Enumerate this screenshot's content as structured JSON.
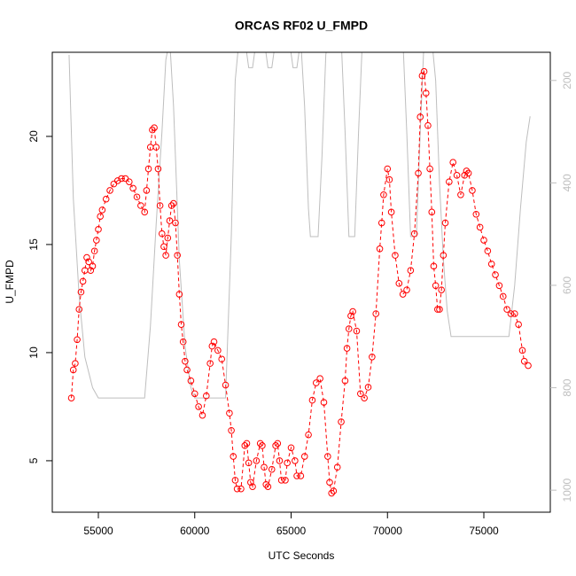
{
  "chart_data": {
    "type": "line",
    "title": "ORCAS RF02 U_FMPD",
    "x_label": "UTC Seconds",
    "y_label": "U_FMPD",
    "xlim": [
      52609,
      78448
    ],
    "ylim": [
      2.62,
      23.89
    ],
    "y2lim": [
      1043,
      145
    ],
    "xticks": [
      55000,
      60000,
      65000,
      70000,
      75000
    ],
    "yticks": [
      5,
      10,
      15,
      20
    ],
    "y2ticks": [
      200,
      400,
      600,
      800,
      1000
    ],
    "series": [
      {
        "color": "#ff0000",
        "markers": true,
        "x": [
          53600,
          53700,
          53800,
          53900,
          54000,
          54100,
          54200,
          54300,
          54400,
          54500,
          54600,
          54700,
          54800,
          54900,
          55000,
          55100,
          55200,
          55400,
          55600,
          55800,
          56000,
          56200,
          56400,
          56600,
          56800,
          57000,
          57200,
          57400,
          57500,
          57600,
          57700,
          57800,
          57900,
          58000,
          58100,
          58200,
          58300,
          58400,
          58500,
          58600,
          58700,
          58800,
          58900,
          59000,
          59100,
          59200,
          59300,
          59400,
          59500,
          59600,
          59800,
          60000,
          60200,
          60400,
          60600,
          60800,
          60900,
          61000,
          61200,
          61400,
          61600,
          61800,
          61900,
          62000,
          62100,
          62200,
          62400,
          62600,
          62700,
          62800,
          62900,
          63000,
          63200,
          63400,
          63500,
          63600,
          63700,
          63800,
          64000,
          64200,
          64300,
          64400,
          64500,
          64700,
          64800,
          65000,
          65200,
          65300,
          65500,
          65700,
          65900,
          66100,
          66300,
          66500,
          66700,
          66900,
          67000,
          67100,
          67200,
          67400,
          67600,
          67800,
          67900,
          68000,
          68100,
          68200,
          68400,
          68600,
          68800,
          69000,
          69200,
          69400,
          69600,
          69700,
          69800,
          70000,
          70100,
          70200,
          70400,
          70600,
          70800,
          71000,
          71200,
          71400,
          71600,
          71700,
          71800,
          71900,
          72000,
          72100,
          72200,
          72300,
          72400,
          72500,
          72600,
          72700,
          72800,
          72900,
          73000,
          73200,
          73400,
          73600,
          73800,
          74000,
          74100,
          74200,
          74400,
          74600,
          74800,
          75000,
          75200,
          75400,
          75600,
          75800,
          76000,
          76200,
          76400,
          76600,
          76800,
          77000,
          77100,
          77300
        ],
        "values": [
          7.9,
          9.2,
          9.5,
          10.6,
          12,
          12.8,
          13.3,
          13.8,
          14.4,
          14.2,
          13.8,
          14,
          14.7,
          15.2,
          15.7,
          16.3,
          16.6,
          17.1,
          17.5,
          17.8,
          17.95,
          18.05,
          18.05,
          17.9,
          17.6,
          17.2,
          16.8,
          16.5,
          17.5,
          18.5,
          19.5,
          20.3,
          20.4,
          19.5,
          18.5,
          16.8,
          15.5,
          14.9,
          14.5,
          15.3,
          16.1,
          16.8,
          16.9,
          16,
          14.5,
          12.7,
          11.3,
          10.5,
          9.6,
          9.2,
          8.7,
          8.1,
          7.5,
          7.1,
          8,
          9.5,
          10.3,
          10.5,
          10.1,
          9.7,
          8.5,
          7.2,
          6.4,
          5.2,
          4.1,
          3.7,
          3.7,
          5.7,
          5.8,
          4.9,
          4,
          3.8,
          5,
          5.8,
          5.7,
          4.7,
          3.9,
          3.8,
          4.6,
          5.7,
          5.8,
          5,
          4.1,
          4.1,
          4.9,
          5.6,
          5,
          4.3,
          4.3,
          5.2,
          6.2,
          7.8,
          8.6,
          8.8,
          7.7,
          5.2,
          4,
          3.5,
          3.6,
          4.7,
          6.8,
          8.7,
          10.2,
          11.1,
          11.7,
          11.9,
          11,
          8.1,
          7.9,
          8.4,
          9.8,
          11.8,
          14.8,
          16,
          17.3,
          18.5,
          18,
          16.5,
          14.5,
          13.2,
          12.7,
          12.9,
          13.8,
          15.5,
          18.3,
          20.9,
          22.8,
          23,
          22,
          20.5,
          18.5,
          16.5,
          14,
          13.1,
          12,
          12,
          12.9,
          14.5,
          16,
          17.9,
          18.8,
          18.2,
          17.3,
          18.2,
          18.4,
          18.3,
          17.5,
          16.4,
          15.8,
          15.2,
          14.7,
          14.1,
          13.6,
          13.1,
          12.6,
          12,
          11.8,
          11.8,
          11.3,
          10.1,
          9.6,
          9.4
        ]
      },
      {
        "color": "#bebebe",
        "markers": false,
        "axis": "y2",
        "x": [
          53480,
          53700,
          54000,
          54300,
          54700,
          55000,
          57400,
          57700,
          58000,
          58300,
          58500,
          58700,
          58900,
          59200,
          59500,
          59800,
          60000,
          61600,
          61900,
          62100,
          62300,
          62600,
          62800,
          63000,
          63200,
          63600,
          63800,
          64000,
          64200,
          64900,
          65100,
          65300,
          65500,
          65700,
          65900,
          66000,
          66400,
          66600,
          66800,
          67000,
          67600,
          67800,
          68000,
          68300,
          68500,
          68700,
          70800,
          71000,
          71200,
          71500,
          71700,
          71900,
          72300,
          72500,
          72700,
          72900,
          73100,
          73300,
          76300,
          76600,
          76900,
          77200,
          77400
        ],
        "values": [
          150,
          430,
          620,
          740,
          800,
          820,
          820,
          680,
          480,
          300,
          160,
          120,
          250,
          550,
          720,
          800,
          820,
          820,
          500,
          200,
          120,
          120,
          175,
          175,
          120,
          120,
          175,
          175,
          120,
          120,
          175,
          175,
          120,
          250,
          450,
          505,
          505,
          350,
          150,
          100,
          120,
          300,
          505,
          505,
          300,
          120,
          120,
          300,
          505,
          505,
          300,
          120,
          120,
          200,
          400,
          550,
          650,
          700,
          700,
          600,
          450,
          320,
          270
        ]
      }
    ]
  }
}
